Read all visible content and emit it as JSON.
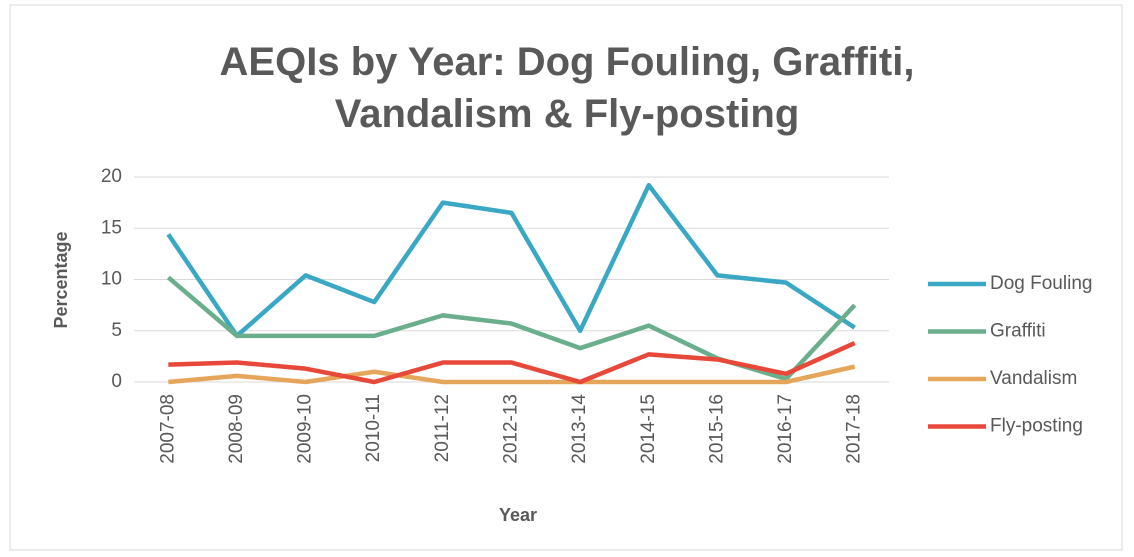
{
  "chart_data": {
    "type": "line",
    "title": "AEQIs by Year: Dog Fouling, Graffiti, Vandalism & Fly-posting",
    "x_label": "Year",
    "y_label": "Percentage",
    "categories": [
      "2007-08",
      "2008-09",
      "2009-10",
      "2010-11",
      "2011-12",
      "2012-13",
      "2013-14",
      "2014-15",
      "2015-16",
      "2016-17",
      "2017-18"
    ],
    "series": [
      {
        "name": "Dog Fouling",
        "color": "#3aa8c4",
        "values": [
          14.4,
          4.5,
          10.4,
          7.8,
          17.5,
          16.5,
          5.0,
          19.2,
          10.4,
          9.7,
          5.3
        ]
      },
      {
        "name": "Graffiti",
        "color": "#6aae8c",
        "values": [
          10.2,
          4.5,
          4.5,
          4.5,
          6.5,
          5.7,
          3.3,
          5.5,
          2.3,
          0.3,
          7.5
        ]
      },
      {
        "name": "Vandalism",
        "color": "#e5a55a",
        "values": [
          0,
          0.6,
          0,
          1.0,
          0,
          0,
          0,
          0,
          0,
          0,
          1.5
        ]
      },
      {
        "name": "Fly-posting",
        "color": "#e8483a",
        "values": [
          1.7,
          1.9,
          1.3,
          0,
          1.9,
          1.9,
          0,
          2.7,
          2.2,
          0.8,
          3.8
        ]
      }
    ],
    "ylim": [
      0,
      20
    ],
    "yticks": [
      0,
      5,
      10,
      15,
      20
    ],
    "grid": true,
    "legend": "right"
  }
}
